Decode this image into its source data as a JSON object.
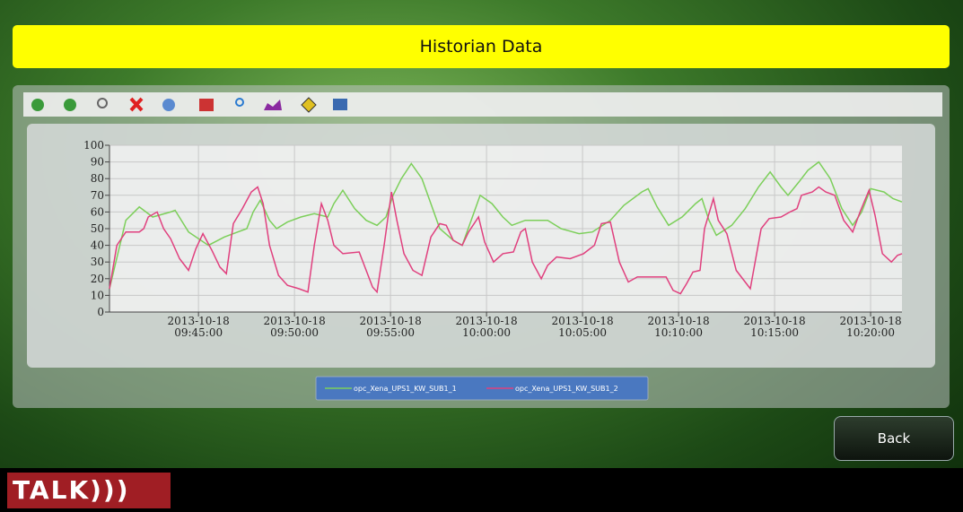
{
  "header": {
    "title": "Historian Data"
  },
  "chart_data": {
    "type": "line",
    "ylim": [
      0,
      100
    ],
    "yticks": [
      0,
      10,
      20,
      30,
      40,
      50,
      60,
      70,
      80,
      90,
      100
    ],
    "grid": true,
    "xlim": [
      "2013-10-18 09:40:22",
      "2013-10-18 10:21:38"
    ],
    "xticks": [
      {
        "value": "2013-10-18 09:45:00",
        "label": [
          "2013-10-18",
          "09:45:00"
        ]
      },
      {
        "value": "2013-10-18 09:50:00",
        "label": [
          "2013-10-18",
          "09:50:00"
        ]
      },
      {
        "value": "2013-10-18 09:55:00",
        "label": [
          "2013-10-18",
          "09:55:00"
        ]
      },
      {
        "value": "2013-10-18 10:00:00",
        "label": [
          "2013-10-18",
          "10:00:00"
        ]
      },
      {
        "value": "2013-10-18 10:05:00",
        "label": [
          "2013-10-18",
          "10:05:00"
        ]
      },
      {
        "value": "2013-10-18 10:10:00",
        "label": [
          "2013-10-18",
          "10:10:00"
        ]
      },
      {
        "value": "2013-10-18 10:15:00",
        "label": [
          "2013-10-18",
          "10:15:00"
        ]
      },
      {
        "value": "2013-10-18 10:20:00",
        "label": [
          "2013-10-18",
          "10:20:00"
        ]
      }
    ],
    "series": [
      {
        "name": "opc_Xena_UPS1_KW_SUB1_1",
        "color": "#7ccf5a",
        "x": [
          "2013-10-18 09:40:22",
          "2013-10-18 09:41:13",
          "2013-10-18 09:41:55",
          "2013-10-18 09:42:37",
          "2013-10-18 09:43:33",
          "2013-10-18 09:43:47",
          "2013-10-18 09:44:29",
          "2013-10-18 09:45:31",
          "2013-10-18 09:46:21",
          "2013-10-18 09:47:03",
          "2013-10-18 09:47:31",
          "2013-10-18 09:47:51",
          "2013-10-18 09:48:13",
          "2013-10-18 09:48:42",
          "2013-10-18 09:49:04",
          "2013-10-18 09:49:38",
          "2013-10-18 09:50:20",
          "2013-10-18 09:51:02",
          "2013-10-18 09:51:44",
          "2013-10-18 09:52:03",
          "2013-10-18 09:52:31",
          "2013-10-18 09:53:08",
          "2013-10-18 09:53:44",
          "2013-10-18 09:54:18",
          "2013-10-18 09:54:46",
          "2013-10-18 09:55:08",
          "2013-10-18 09:55:34",
          "2013-10-18 09:56:05",
          "2013-10-18 09:56:38",
          "2013-10-18 09:57:06",
          "2013-10-18 09:57:34",
          "2013-10-18 09:58:16",
          "2013-10-18 09:58:44",
          "2013-10-18 09:59:12",
          "2013-10-18 09:59:40",
          "2013-10-18 10:00:17",
          "2013-10-18 10:00:51",
          "2013-10-18 10:01:19",
          "2013-10-18 10:02:01",
          "2013-10-18 10:03:11",
          "2013-10-18 10:03:53",
          "2013-10-18 10:04:49",
          "2013-10-18 10:05:31",
          "2013-10-18 10:06:27",
          "2013-10-18 10:07:09",
          "2013-10-18 10:08:05",
          "2013-10-18 10:08:25",
          "2013-10-18 10:08:53",
          "2013-10-18 10:09:29",
          "2013-10-18 10:10:11",
          "2013-10-18 10:10:53",
          "2013-10-18 10:11:13",
          "2013-10-18 10:11:35",
          "2013-10-18 10:11:58",
          "2013-10-18 10:12:46",
          "2013-10-18 10:13:28",
          "2013-10-18 10:14:10",
          "2013-10-18 10:14:46",
          "2013-10-18 10:15:20",
          "2013-10-18 10:15:42",
          "2013-10-18 10:16:16",
          "2013-10-18 10:16:44",
          "2013-10-18 10:17:18",
          "2013-10-18 10:17:54",
          "2013-10-18 10:18:30",
          "2013-10-18 10:19:04",
          "2013-10-18 10:19:32",
          "2013-10-18 10:20:00",
          "2013-10-18 10:20:42",
          "2013-10-18 10:21:10",
          "2013-10-18 10:21:38"
        ],
        "values": [
          14,
          55,
          63,
          57,
          60,
          61,
          48,
          40,
          45,
          48,
          50,
          60,
          67,
          55,
          50,
          54,
          57,
          59,
          57,
          65,
          73,
          62,
          55,
          52,
          57,
          70,
          80,
          89,
          80,
          65,
          50,
          43,
          40,
          55,
          70,
          65,
          57,
          52,
          55,
          55,
          50,
          47,
          48,
          55,
          64,
          72,
          74,
          63,
          52,
          57,
          65,
          68,
          55,
          46,
          52,
          62,
          75,
          84,
          75,
          70,
          78,
          85,
          90,
          80,
          62,
          52,
          60,
          74,
          72,
          68,
          66
        ]
      },
      {
        "name": "opc_Xena_UPS1_KW_SUB1_2",
        "color": "#e0407e",
        "x": [
          "2013-10-18 09:40:22",
          "2013-10-18 09:40:45",
          "2013-10-18 09:41:13",
          "2013-10-18 09:41:55",
          "2013-10-18 09:42:09",
          "2013-10-18 09:42:23",
          "2013-10-18 09:42:51",
          "2013-10-18 09:43:11",
          "2013-10-18 09:43:33",
          "2013-10-18 09:44:01",
          "2013-10-18 09:44:29",
          "2013-10-18 09:44:52",
          "2013-10-18 09:45:14",
          "2013-10-18 09:45:42",
          "2013-10-18 09:46:07",
          "2013-10-18 09:46:27",
          "2013-10-18 09:46:49",
          "2013-10-18 09:47:17",
          "2013-10-18 09:47:45",
          "2013-10-18 09:48:05",
          "2013-10-18 09:48:22",
          "2013-10-18 09:48:42",
          "2013-10-18 09:49:10",
          "2013-10-18 09:49:38",
          "2013-10-18 09:50:14",
          "2013-10-18 09:50:42",
          "2013-10-18 09:51:02",
          "2013-10-18 09:51:24",
          "2013-10-18 09:51:44",
          "2013-10-18 09:52:03",
          "2013-10-18 09:52:31",
          "2013-10-18 09:53:22",
          "2013-10-18 09:53:44",
          "2013-10-18 09:54:04",
          "2013-10-18 09:54:18",
          "2013-10-18 09:54:40",
          "2013-10-18 09:55:03",
          "2013-10-18 09:55:20",
          "2013-10-18 09:55:42",
          "2013-10-18 09:56:10",
          "2013-10-18 09:56:38",
          "2013-10-18 09:57:06",
          "2013-10-18 09:57:34",
          "2013-10-18 09:57:54",
          "2013-10-18 09:58:16",
          "2013-10-18 09:58:44",
          "2013-10-18 09:59:04",
          "2013-10-18 09:59:35",
          "2013-10-18 09:59:54",
          "2013-10-18 10:00:22",
          "2013-10-18 10:00:51",
          "2013-10-18 10:01:24",
          "2013-10-18 10:01:47",
          "2013-10-18 10:02:01",
          "2013-10-18 10:02:23",
          "2013-10-18 10:02:51",
          "2013-10-18 10:03:11",
          "2013-10-18 10:03:39",
          "2013-10-18 10:04:21",
          "2013-10-18 10:05:03",
          "2013-10-18 10:05:37",
          "2013-10-18 10:05:59",
          "2013-10-18 10:06:27",
          "2013-10-18 10:06:55",
          "2013-10-18 10:07:23",
          "2013-10-18 10:07:51",
          "2013-10-18 10:09:21",
          "2013-10-18 10:09:43",
          "2013-10-18 10:10:06",
          "2013-10-18 10:10:25",
          "2013-10-18 10:10:45",
          "2013-10-18 10:11:07",
          "2013-10-18 10:11:21",
          "2013-10-18 10:11:49",
          "2013-10-18 10:12:04",
          "2013-10-18 10:12:31",
          "2013-10-18 10:13:00",
          "2013-10-18 10:13:28",
          "2013-10-18 10:13:44",
          "2013-10-18 10:14:18",
          "2013-10-18 10:14:43",
          "2013-10-18 10:15:20",
          "2013-10-18 10:15:48",
          "2013-10-18 10:16:10",
          "2013-10-18 10:16:24",
          "2013-10-18 10:16:58",
          "2013-10-18 10:17:18",
          "2013-10-18 10:17:40",
          "2013-10-18 10:18:08",
          "2013-10-18 10:18:36",
          "2013-10-18 10:19:04",
          "2013-10-18 10:19:27",
          "2013-10-18 10:19:55",
          "2013-10-18 10:20:14",
          "2013-10-18 10:20:37",
          "2013-10-18 10:21:05",
          "2013-10-18 10:21:24",
          "2013-10-18 10:21:38"
        ],
        "values": [
          14,
          40,
          48,
          48,
          50,
          57,
          60,
          50,
          44,
          32,
          25,
          38,
          47,
          37,
          27,
          23,
          53,
          62,
          72,
          75,
          65,
          40,
          22,
          16,
          14,
          12,
          40,
          65,
          55,
          40,
          35,
          36,
          25,
          15,
          12,
          40,
          72,
          55,
          35,
          25,
          22,
          45,
          53,
          52,
          43,
          40,
          48,
          57,
          42,
          30,
          35,
          36,
          48,
          50,
          30,
          20,
          28,
          33,
          32,
          35,
          40,
          53,
          54,
          30,
          18,
          21,
          21,
          13,
          11,
          17,
          24,
          25,
          50,
          68,
          55,
          47,
          25,
          18,
          14,
          50,
          56,
          57,
          60,
          62,
          70,
          72,
          75,
          72,
          70,
          55,
          48,
          60,
          73,
          58,
          35,
          30,
          34,
          35
        ]
      }
    ]
  },
  "back_button": {
    "label": "Back"
  },
  "logo": {
    "text": "TALK)))"
  }
}
